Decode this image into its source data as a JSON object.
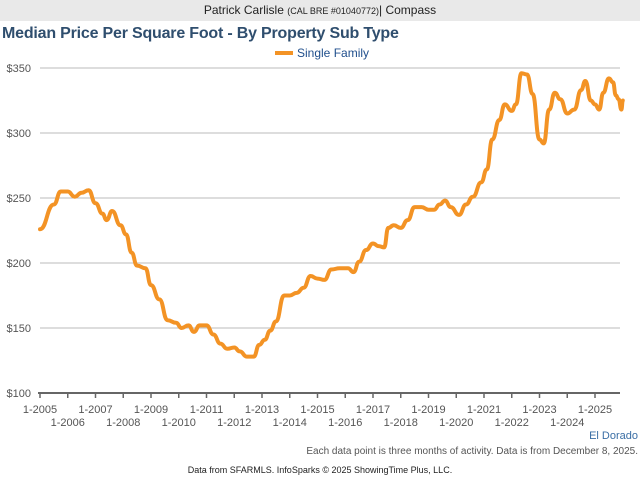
{
  "header": {
    "agent_name": "Patrick Carlisle",
    "license": "(CAL BRE #01040772)",
    "separator": "|",
    "brokerage": "Compass"
  },
  "footer": {
    "region": "El Dorado",
    "note": "Each data point is three months of activity. Data is from December 8, 2025.",
    "source": "Data from SFARMLS. InfoSparks © 2025 ShowingTime Plus, LLC."
  },
  "colors": {
    "series": "#f39325",
    "title": "#2f4e6e",
    "grid": "#bbbbbb"
  },
  "chart_data": {
    "type": "line",
    "title": "Median Price Per Square Foot - By Property Sub Type",
    "xlabel": "",
    "ylabel": "",
    "legend_position": "top-center",
    "grid": true,
    "ylim": [
      100,
      350
    ],
    "xlim": [
      2005.0,
      2026.0
    ],
    "y_ticks": [
      {
        "value": 350,
        "label": "$350"
      },
      {
        "value": 300,
        "label": "$300"
      },
      {
        "value": 250,
        "label": "$250"
      },
      {
        "value": 200,
        "label": "$200"
      },
      {
        "value": 150,
        "label": "$150"
      },
      {
        "value": 100,
        "label": "$100"
      }
    ],
    "x_ticks": [
      {
        "value": 2005,
        "label": "1-2005"
      },
      {
        "value": 2006,
        "label": "1-2006"
      },
      {
        "value": 2007,
        "label": "1-2007"
      },
      {
        "value": 2008,
        "label": "1-2008"
      },
      {
        "value": 2009,
        "label": "1-2009"
      },
      {
        "value": 2010,
        "label": "1-2010"
      },
      {
        "value": 2011,
        "label": "1-2011"
      },
      {
        "value": 2012,
        "label": "1-2012"
      },
      {
        "value": 2013,
        "label": "1-2013"
      },
      {
        "value": 2014,
        "label": "1-2014"
      },
      {
        "value": 2015,
        "label": "1-2015"
      },
      {
        "value": 2016,
        "label": "1-2016"
      },
      {
        "value": 2017,
        "label": "1-2017"
      },
      {
        "value": 2018,
        "label": "1-2018"
      },
      {
        "value": 2019,
        "label": "1-2019"
      },
      {
        "value": 2020,
        "label": "1-2020"
      },
      {
        "value": 2021,
        "label": "1-2021"
      },
      {
        "value": 2022,
        "label": "1-2022"
      },
      {
        "value": 2023,
        "label": "1-2023"
      },
      {
        "value": 2024,
        "label": "1-2024"
      },
      {
        "value": 2025,
        "label": "1-2025"
      }
    ],
    "series": [
      {
        "name": "Single Family",
        "x": [
          2005.0,
          2005.5,
          2005.75,
          2006.0,
          2006.25,
          2006.5,
          2006.75,
          2007.0,
          2007.25,
          2007.4,
          2007.6,
          2007.9,
          2008.1,
          2008.3,
          2008.5,
          2008.8,
          2009.0,
          2009.3,
          2009.6,
          2009.9,
          2010.1,
          2010.35,
          2010.55,
          2010.75,
          2011.0,
          2011.25,
          2011.5,
          2011.75,
          2012.0,
          2012.2,
          2012.45,
          2012.7,
          2012.9,
          2013.1,
          2013.3,
          2013.5,
          2013.8,
          2014.0,
          2014.25,
          2014.5,
          2014.75,
          2015.0,
          2015.25,
          2015.5,
          2015.8,
          2016.1,
          2016.3,
          2016.5,
          2016.75,
          2017.0,
          2017.2,
          2017.4,
          2017.55,
          2017.75,
          2018.0,
          2018.25,
          2018.5,
          2018.75,
          2019.0,
          2019.2,
          2019.4,
          2019.6,
          2019.8,
          2020.1,
          2020.35,
          2020.6,
          2020.9,
          2021.1,
          2021.3,
          2021.55,
          2021.75,
          2022.0,
          2022.15,
          2022.35,
          2022.55,
          2022.75,
          2023.0,
          2023.15,
          2023.35,
          2023.55,
          2023.75,
          2024.0,
          2024.25,
          2024.5,
          2024.65,
          2024.85,
          2025.0,
          2025.15,
          2025.3,
          2025.5,
          2025.65,
          2025.75,
          2025.85,
          2025.95,
          2026.0
        ],
        "values": [
          226,
          245,
          255,
          255,
          251,
          254,
          256,
          246,
          238,
          233,
          240,
          229,
          222,
          208,
          198,
          196,
          183,
          172,
          156,
          154,
          150,
          152,
          147,
          152,
          152,
          145,
          138,
          134,
          135,
          132,
          128,
          128,
          137,
          141,
          148,
          155,
          175,
          175,
          177,
          181,
          190,
          188,
          187,
          195,
          196,
          196,
          193,
          201,
          210,
          215,
          213,
          212,
          227,
          229,
          227,
          233,
          243,
          243,
          241,
          241,
          245,
          248,
          243,
          237,
          245,
          251,
          262,
          272,
          295,
          310,
          322,
          317,
          322,
          346,
          345,
          330,
          295,
          292,
          318,
          331,
          326,
          315,
          318,
          333,
          340,
          325,
          322,
          318,
          331,
          342,
          339,
          329,
          326,
          318,
          325
        ]
      }
    ]
  }
}
